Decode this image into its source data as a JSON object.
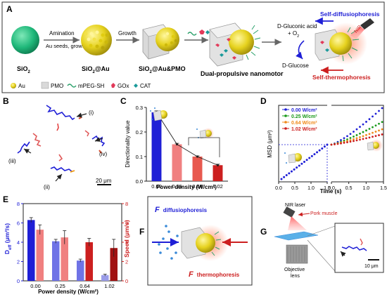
{
  "panels": {
    "A": "A",
    "B": "B",
    "C": "C",
    "D": "D",
    "E": "E",
    "F": "F",
    "G": "G"
  },
  "colors": {
    "blue": "#1f1fd6",
    "pink": "#f08080",
    "salmon": "#e8594f",
    "red": "#cc1f1f",
    "darkred": "#a11212",
    "light_blue": "#9a9ce8",
    "periwinkle": "#6f73e6",
    "green": "#1a9a1a",
    "orange": "#f08a1a",
    "sio2": "#1fb87a",
    "gold": "#e6d21e",
    "pmo": "#c9c9c9",
    "peg": "#2aa06a"
  },
  "panel_a": {
    "labels": {
      "sio2": "SiO",
      "sio2_sub": "2",
      "sio2au": "SiO",
      "sio2au_sub": "2",
      "sio2au_tail": "@Au",
      "sio2aupmo": "SiO",
      "sio2aupmo_sub": "2",
      "sio2aupmo_tail": "@Au&PMO",
      "dual": "Dual-propulsive nanomotor",
      "amination": "Amination",
      "au_seeds": "Au seeds, growth",
      "growth": "Growth",
      "gluconic": "D-Gluconic acid",
      "plus_o2": "+ O",
      "o2_sub": "2",
      "glucose": "D-Glucose",
      "self_diff": "Self-diffusiophoresis",
      "self_thermo": "Self-thermophoresis",
      "nir": "NIR"
    },
    "legend": [
      "Au",
      "PMO",
      "mPEG-SH",
      "GOx",
      "CAT"
    ]
  },
  "panel_b": {
    "labels": [
      "(i)",
      "(ii)",
      "(iii)",
      "(iv)"
    ],
    "scale": "20 μm"
  },
  "panel_c": {
    "chart_data": {
      "type": "bar",
      "categories": [
        "0.00",
        "0.25",
        "0.64",
        "1.02"
      ],
      "values": [
        0.28,
        0.15,
        0.1,
        0.065
      ],
      "errors": [
        0.006,
        0.004,
        0.003,
        0.004
      ],
      "ylabel": "Directionality value",
      "xlabel": "Power density (W/cm²)",
      "ylim": [
        0,
        0.3
      ],
      "yticks": [
        "0.0",
        "0.1",
        "0.2",
        "0.3"
      ]
    }
  },
  "panel_d": {
    "chart_data": {
      "type": "line",
      "ylabel": "MSD (μm²)",
      "xlabel": "Time (s)",
      "x_ticks": [
        "0.0",
        "0.5",
        "1.0",
        "1.5",
        "0.0",
        "0.5",
        "1.0",
        "1.5"
      ],
      "series": [
        {
          "name": "0.00 W/cm²",
          "end_value": 1.0
        },
        {
          "name": "0.25 W/cm²",
          "end_value": 0.62
        },
        {
          "name": "0.64 W/cm²",
          "end_value": 0.42
        },
        {
          "name": "1.02 W/cm²",
          "end_value": 0.28
        }
      ]
    }
  },
  "panel_e": {
    "chart_data": {
      "type": "bar",
      "categories": [
        "0.00",
        "0.25",
        "0.64",
        "1.02"
      ],
      "series": [
        {
          "name": "Deff",
          "values": [
            6.3,
            4.1,
            2.1,
            0.6
          ],
          "errors": [
            0.25,
            0.2,
            0.15,
            0.1
          ]
        },
        {
          "name": "Speed",
          "values": [
            5.3,
            4.5,
            4.0,
            3.4
          ],
          "errors": [
            0.5,
            0.7,
            0.4,
            0.9
          ]
        }
      ],
      "ylabel_left": "D",
      "ylabel_left_sub": "eff",
      "ylabel_left_unit": " (μm²/s)",
      "ylabel_right": "Speed (μm/s)",
      "xlabel": "Power density (W/cm²)",
      "ylim": [
        0,
        8
      ],
      "yticks": [
        "0",
        "2",
        "4",
        "6",
        "8"
      ]
    }
  },
  "panel_f": {
    "f_letter_1": "F",
    "diffusio": "diffusiophoresis",
    "f_letter_2": "F",
    "thermo": "thermophoresis"
  },
  "panel_g": {
    "nir_laser": "NIR laser",
    "pork": "Pork muscle",
    "objective_1": "Objective",
    "objective_2": "lens",
    "scale": "10 μm"
  }
}
